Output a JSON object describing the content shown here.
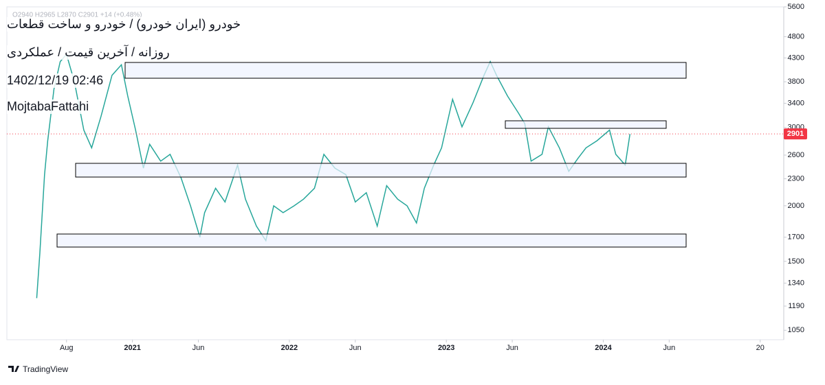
{
  "chart_data": {
    "type": "line",
    "header": {
      "ohlc": "O2940 H2965 L2870 C2901 +14 (+0.48%)",
      "lines": [
        "خودرو (ایران خودرو) / خودرو و ساخت قطعات",
        "روزانه / آخرین قیمت / عملکردی",
        "1402/12/19 02:46",
        "MojtabaFattahi"
      ]
    },
    "footer": "TradingView",
    "log_scale": true,
    "grid": false,
    "x": [
      2020.39,
      2020.41,
      2020.44,
      2020.46,
      2020.5,
      2020.54,
      2020.58,
      2020.63,
      2020.69,
      2020.74,
      2020.8,
      2020.87,
      2020.93,
      2020.97,
      2021.02,
      2021.07,
      2021.11,
      2021.18,
      2021.24,
      2021.31,
      2021.37,
      2021.43,
      2021.46,
      2021.53,
      2021.59,
      2021.67,
      2021.72,
      2021.79,
      2021.85,
      2021.9,
      2021.96,
      2022.03,
      2022.09,
      2022.16,
      2022.22,
      2022.29,
      2022.36,
      2022.42,
      2022.49,
      2022.56,
      2022.62,
      2022.69,
      2022.75,
      2022.81,
      2022.86,
      2022.92,
      2022.97,
      2023.04,
      2023.1,
      2023.17,
      2023.24,
      2023.28,
      2023.32,
      2023.39,
      2023.46,
      2023.5,
      2023.54,
      2023.61,
      2023.65,
      2023.72,
      2023.78,
      2023.84,
      2023.89,
      2023.96,
      2024.04,
      2024.08,
      2024.14,
      2024.17
    ],
    "series": [
      {
        "name": "Close",
        "color": "#26a69a",
        "values": [
          1240,
          1560,
          2350,
          2800,
          3660,
          4220,
          4380,
          3800,
          2960,
          2700,
          3180,
          3930,
          4150,
          3530,
          2960,
          2430,
          2750,
          2520,
          2610,
          2310,
          2000,
          1700,
          1930,
          2190,
          2040,
          2470,
          2070,
          1800,
          1670,
          2000,
          1930,
          2000,
          2070,
          2190,
          2610,
          2430,
          2350,
          2040,
          2140,
          1800,
          2220,
          2070,
          2000,
          1830,
          2190,
          2470,
          2700,
          3470,
          3010,
          3410,
          3930,
          4220,
          3930,
          3530,
          3230,
          3060,
          2520,
          2610,
          3010,
          2700,
          2390,
          2560,
          2700,
          2800,
          2960,
          2610,
          2470,
          2901
        ]
      }
    ],
    "last_price": 2901,
    "last_price_color": "#f23645",
    "xlim": [
      2020.2,
      2025.15
    ],
    "xticks": [
      {
        "value": 2020.58,
        "label": "Aug"
      },
      2021,
      {
        "value": 2021.42,
        "label": "Jun"
      },
      2022,
      {
        "value": 2022.42,
        "label": "Jun"
      },
      2023,
      {
        "value": 2023.42,
        "label": "Jun"
      },
      2024,
      {
        "value": 2024.42,
        "label": "Jun"
      },
      {
        "value": 2025,
        "label": "20"
      }
    ],
    "ylim": [
      1000,
      5600
    ],
    "yticks": [
      1050,
      1190,
      1340,
      1500,
      1700,
      2000,
      2300,
      2600,
      3000,
      3400,
      3800,
      4300,
      4800,
      5600
    ]
  }
}
